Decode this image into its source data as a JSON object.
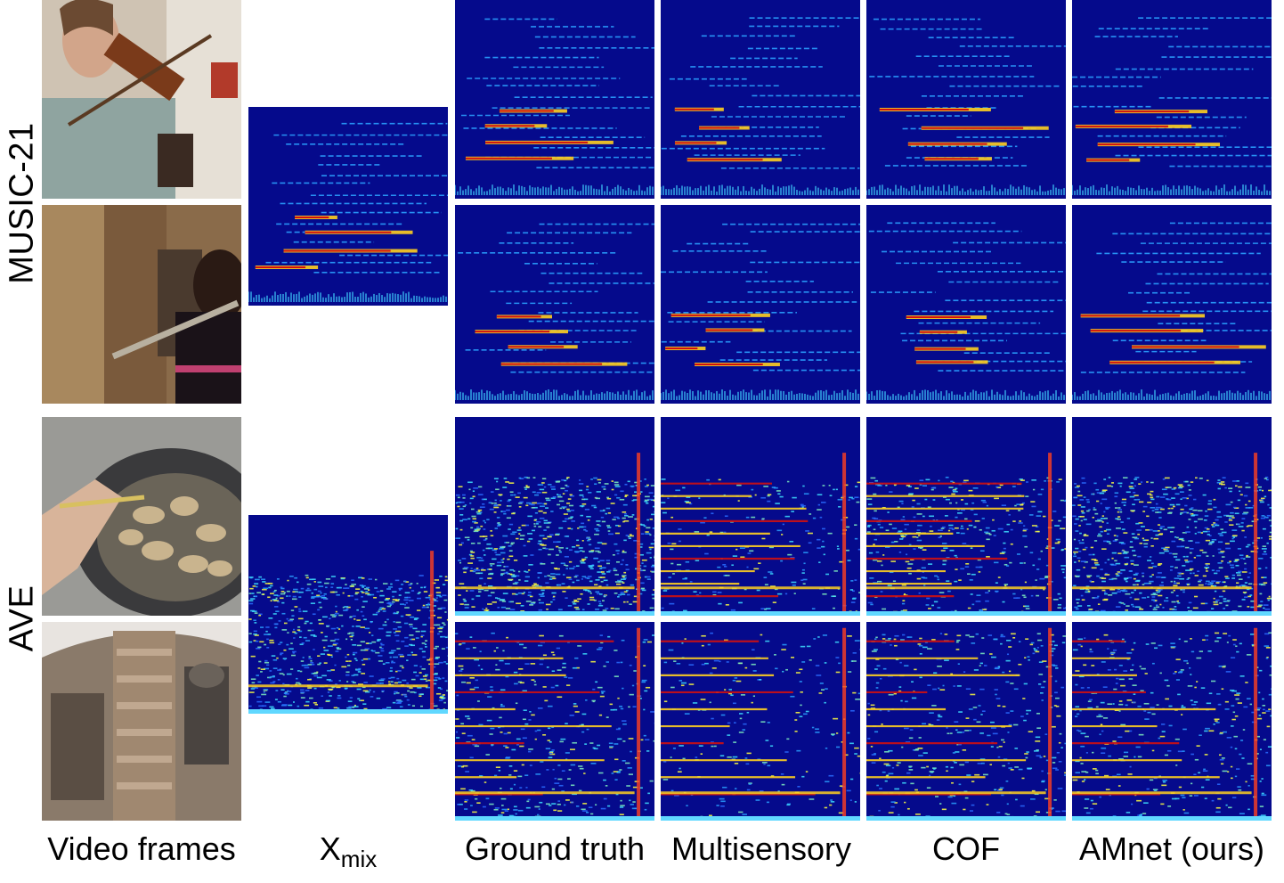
{
  "row_labels": {
    "music": "MUSIC-21",
    "ave": "AVE"
  },
  "columns": {
    "video_frames": "Video frames",
    "xmix_base": "X",
    "xmix_sub": "mix",
    "ground_truth": "Ground truth",
    "multisensory": "Multisensory",
    "cof": "COF",
    "amnet": "AMnet (ours)"
  },
  "frames": [
    {
      "name": "violin-player-frame",
      "scene": "woman playing violin"
    },
    {
      "name": "flute-player-frame",
      "scene": "girl playing flute"
    },
    {
      "name": "frying-pan-frame",
      "scene": "frying food in pan"
    },
    {
      "name": "bell-tower-frame",
      "scene": "church bell tower"
    }
  ],
  "colors": {
    "spectrogram_bg": "#050a8c",
    "spectrogram_high": "#c00000",
    "spectrogram_mid": "#ffff33",
    "spectrogram_low": "#30c0ff"
  }
}
